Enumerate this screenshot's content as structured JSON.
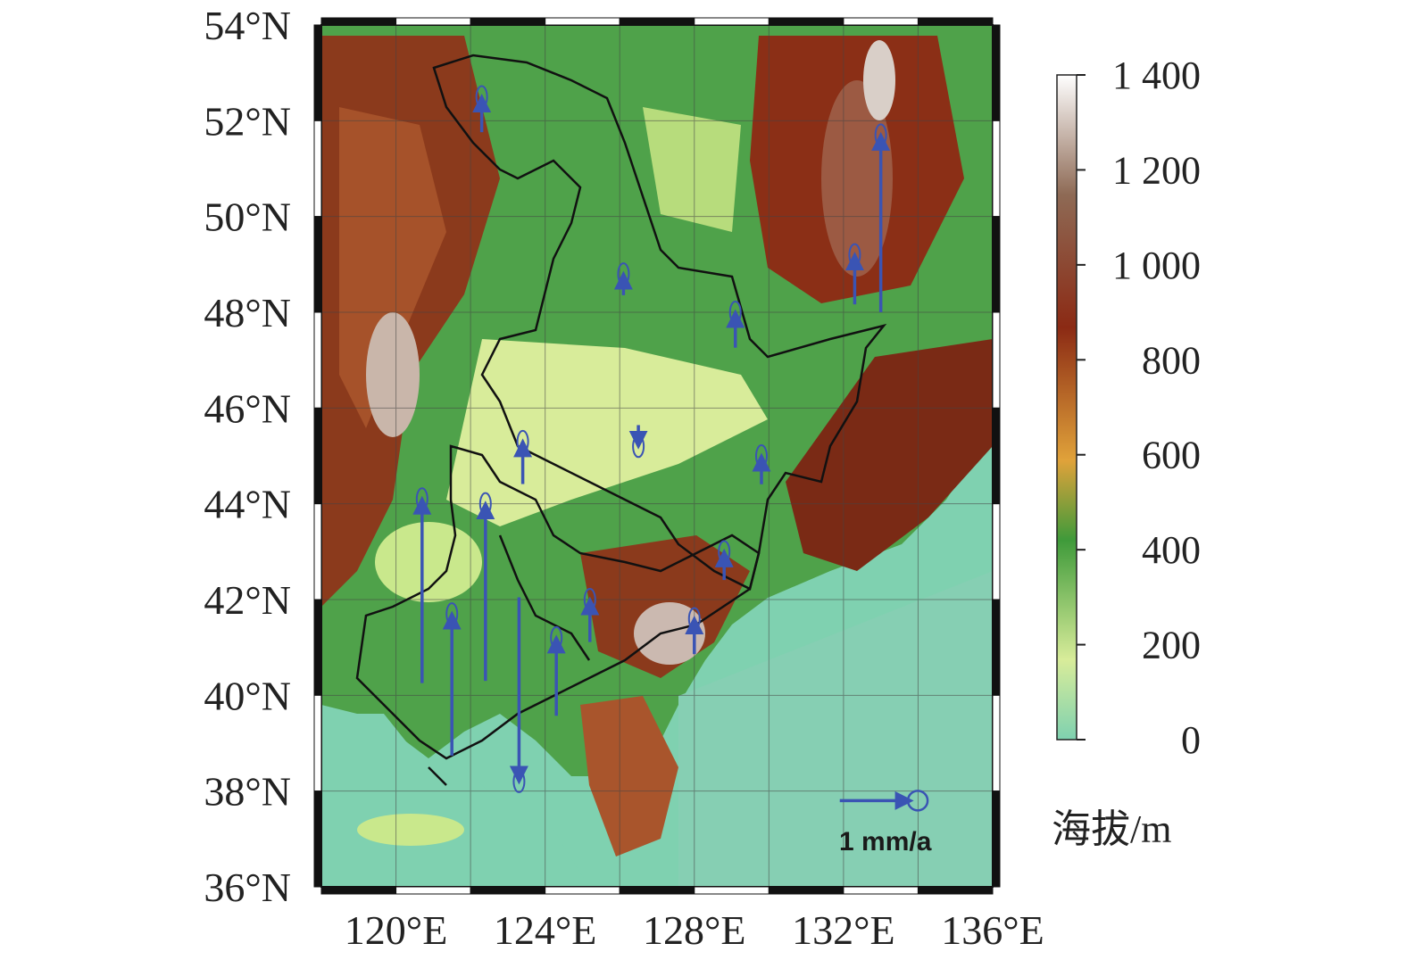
{
  "map": {
    "lat_labels": [
      "54°N",
      "52°N",
      "50°N",
      "48°N",
      "46°N",
      "44°N",
      "42°N",
      "40°N",
      "38°N",
      "36°N"
    ],
    "lon_labels": [
      "120°E",
      "124°E",
      "128°E",
      "132°E",
      "136°E"
    ],
    "lon_range": [
      118,
      136
    ],
    "lat_range": [
      36,
      54
    ],
    "grid": true,
    "vector_color": "#3a54b4",
    "boundary_color": "#111111"
  },
  "colorbar": {
    "ticks": [
      "1 400",
      "1 200",
      "1 000",
      "800",
      "600",
      "400",
      "200",
      "0"
    ],
    "range": [
      0,
      1400
    ],
    "label": "海拔/m",
    "colors": [
      "#7fd1b0",
      "#d8ec9a",
      "#3f9a3a",
      "#e0a23a",
      "#8b2a14",
      "#ffffff"
    ]
  },
  "scale": {
    "label": "1 mm/a"
  },
  "chart_data": {
    "type": "vector-map",
    "unit": "mm/a",
    "stations": [
      {
        "lon": 122.3,
        "lat": 52.5,
        "v": 0.5
      },
      {
        "lon": 126.1,
        "lat": 48.8,
        "v": 0.3
      },
      {
        "lon": 129.1,
        "lat": 48.0,
        "v": 0.5
      },
      {
        "lon": 132.3,
        "lat": 49.2,
        "v": 0.7
      },
      {
        "lon": 133.0,
        "lat": 51.7,
        "v": 2.5
      },
      {
        "lon": 123.4,
        "lat": 45.3,
        "v": 0.6
      },
      {
        "lon": 126.5,
        "lat": 45.2,
        "v": -0.3
      },
      {
        "lon": 129.8,
        "lat": 45.0,
        "v": 0.4
      },
      {
        "lon": 120.7,
        "lat": 44.1,
        "v": 2.6
      },
      {
        "lon": 122.4,
        "lat": 44.0,
        "v": 2.5
      },
      {
        "lon": 128.8,
        "lat": 43.0,
        "v": 0.4
      },
      {
        "lon": 125.2,
        "lat": 42.0,
        "v": 0.6
      },
      {
        "lon": 128.0,
        "lat": 41.6,
        "v": 0.5
      },
      {
        "lon": 121.5,
        "lat": 41.7,
        "v": 2.0
      },
      {
        "lon": 124.3,
        "lat": 41.2,
        "v": 1.1
      },
      {
        "lon": 123.3,
        "lat": 38.2,
        "v": -2.6
      }
    ],
    "scale_vector": {
      "lon": 133.8,
      "lat": 37.8,
      "value": 1
    }
  }
}
